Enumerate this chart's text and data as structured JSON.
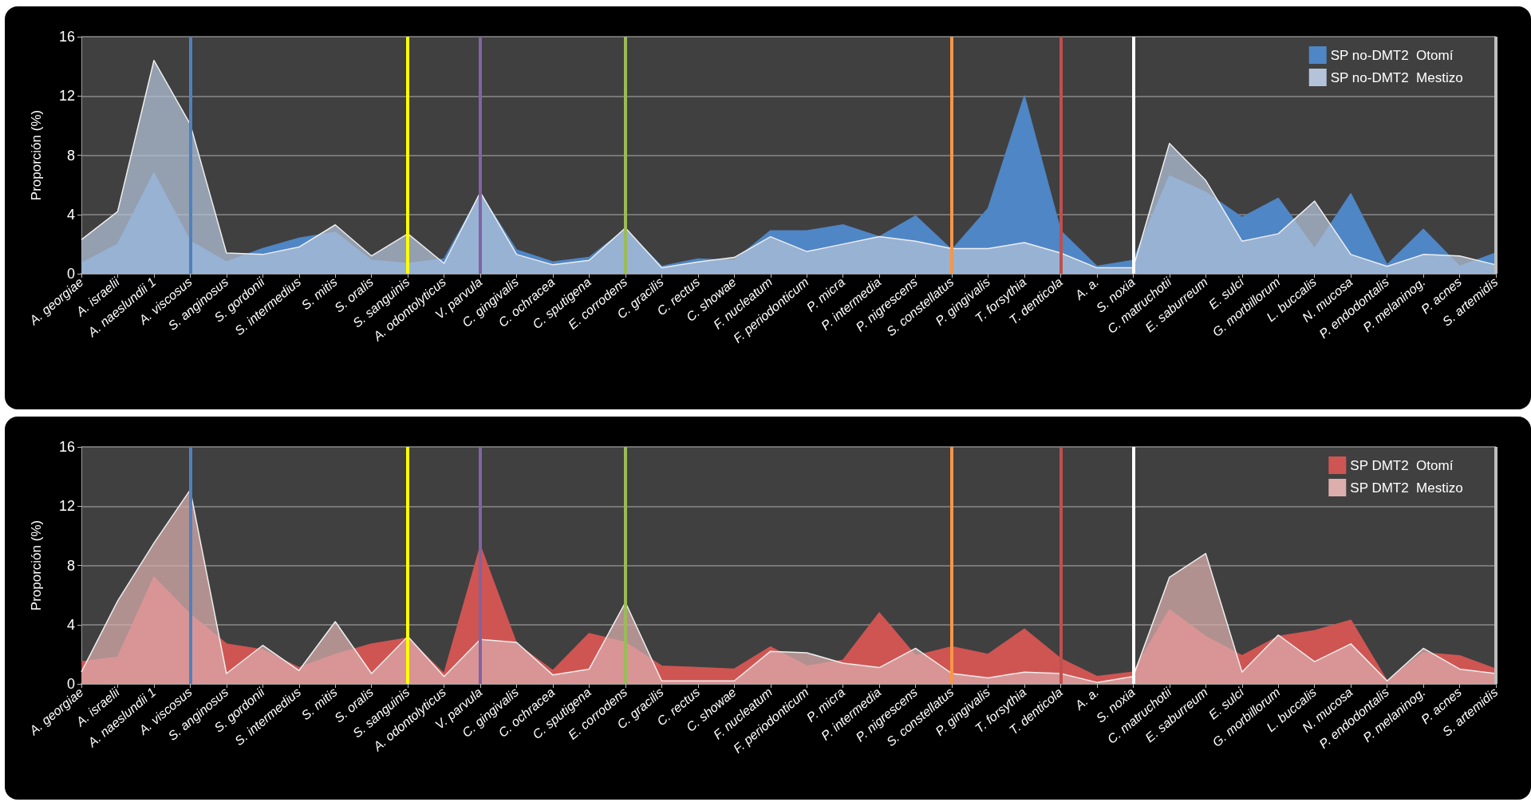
{
  "chart_data": [
    {
      "type": "area",
      "ylabel": "Proporción (%)",
      "categories": [
        "A. georgiae",
        "A. israelii",
        "A. naeslundii 1",
        "A. viscosus",
        "S. anginosus",
        "S. gordonii",
        "S. intermedius",
        "S. mitis",
        "S. oralis",
        "S. sanguinis",
        "A. odontolyticus",
        "V. parvula",
        "C. gingivalis",
        "C. ochracea",
        "C. sputigena",
        "E. corrodens",
        "C. gracilis",
        "C. rectus",
        "C. showae",
        "F. nucleatum",
        "F. periodonticum",
        "P. micra",
        "P. intermedia",
        "P. nigrescens",
        "S. constellatus",
        "P. gingivalis",
        "T. forsythia",
        "T. denticola",
        "A. a.",
        "S. noxia",
        "C. matruchotii",
        "E. saburreum",
        "E. sulci",
        "G. morbillorum",
        "L. buccalis",
        "N. mucosa",
        "P. endodontalis",
        "P. melaninog.",
        "P. acnes",
        "S. artemidis"
      ],
      "series": [
        {
          "name": "SP no-DMT2  Otomí",
          "color": "#4f86c6",
          "values": [
            0.7,
            2.0,
            6.8,
            2.2,
            0.8,
            1.7,
            2.4,
            2.8,
            0.9,
            0.7,
            1.0,
            5.4,
            1.6,
            0.8,
            1.1,
            3.0,
            0.5,
            1.0,
            0.9,
            2.9,
            2.9,
            3.3,
            2.5,
            3.9,
            1.6,
            4.4,
            12.0,
            2.9,
            0.5,
            0.9,
            6.6,
            5.5,
            3.8,
            5.1,
            1.7,
            5.4,
            0.6,
            3.0,
            0.5,
            1.4
          ]
        },
        {
          "name": "SP no-DMT2  Mestizo",
          "color": "#b4c3da",
          "values": [
            2.3,
            4.2,
            14.4,
            10.1,
            1.4,
            1.3,
            1.8,
            3.3,
            1.2,
            2.7,
            0.7,
            5.5,
            1.3,
            0.6,
            0.9,
            3.1,
            0.4,
            0.8,
            1.1,
            2.5,
            1.5,
            2.0,
            2.5,
            2.2,
            1.7,
            1.7,
            2.1,
            1.4,
            0.4,
            0.4,
            8.8,
            6.3,
            2.2,
            2.7,
            4.9,
            1.3,
            0.5,
            1.3,
            1.2,
            0.6
          ]
        }
      ],
      "ylim": [
        0,
        16
      ],
      "yticks": [
        0,
        4,
        8,
        12,
        16
      ],
      "grid": "y",
      "legend": "top right",
      "marker": "none",
      "ref_lines": [
        {
          "axis": "x",
          "value": "A. viscosus",
          "color": "#4f81bd"
        },
        {
          "axis": "x",
          "value": "S. sanguinis",
          "color": "#ffff00"
        },
        {
          "axis": "x",
          "value": "V. parvula",
          "color": "#8064a2"
        },
        {
          "axis": "x",
          "value": "E. corrodens",
          "color": "#9bbb59"
        },
        {
          "axis": "x",
          "value": "S. constellatus",
          "color": "#f79646"
        },
        {
          "axis": "x",
          "value": "T. denticola",
          "color": "#c0504d"
        },
        {
          "axis": "x",
          "value": "S. noxia",
          "color": "#ffffff"
        },
        {
          "axis": "x",
          "value": "S. artemidis",
          "color": "#bfbfbf"
        }
      ]
    },
    {
      "type": "area",
      "ylabel": "Proporción (%)",
      "categories": [
        "A. georgiae",
        "A. israelii",
        "A. naeslundii 1",
        "A. viscosus",
        "S. anginosus",
        "S. gordonii",
        "S. intermedius",
        "S. mitis",
        "S. oralis",
        "S. sanguinis",
        "A. odontolyticus",
        "V. parvula",
        "C. gingivalis",
        "C. ochracea",
        "C. sputigena",
        "E. corrodens",
        "C. gracilis",
        "C. rectus",
        "C. showae",
        "F. nucleatum",
        "F. periodonticum",
        "P. micra",
        "P. intermedia",
        "P. nigrescens",
        "S. constellatus",
        "P. gingivalis",
        "T. forsythia",
        "T. denticola",
        "A. a.",
        "S. noxia",
        "C. matruchotii",
        "E. saburreum",
        "E. sulci",
        "G. morbillorum",
        "L. buccalis",
        "N. mucosa",
        "P. endodontalis",
        "P. melaninog.",
        "P. acnes",
        "S. artemidis"
      ],
      "series": [
        {
          "name": "SP DMT2  Otomí",
          "color": "#cf5553",
          "values": [
            1.5,
            1.8,
            7.2,
            4.7,
            2.7,
            2.3,
            1.1,
            2.0,
            2.7,
            3.1,
            0.7,
            9.3,
            2.7,
            0.9,
            3.4,
            2.8,
            1.2,
            1.1,
            1.0,
            2.5,
            1.2,
            1.6,
            4.8,
            1.9,
            2.5,
            2.0,
            3.7,
            1.7,
            0.5,
            0.8,
            5.0,
            3.2,
            1.9,
            3.2,
            3.6,
            4.3,
            0.2,
            2.1,
            1.9,
            1.0
          ]
        },
        {
          "name": "SP DMT2  Mestizo",
          "color": "#dcaeae",
          "values": [
            0.8,
            5.6,
            9.5,
            13.1,
            0.7,
            2.6,
            0.9,
            4.2,
            0.7,
            3.2,
            0.5,
            3.0,
            2.8,
            0.6,
            1.0,
            5.5,
            0.2,
            0.2,
            0.2,
            2.2,
            2.1,
            1.4,
            1.1,
            2.4,
            0.7,
            0.4,
            0.8,
            0.7,
            0.1,
            0.5,
            7.2,
            8.8,
            0.8,
            3.3,
            1.5,
            2.7,
            0.2,
            2.4,
            1.0,
            0.7
          ]
        }
      ],
      "ylim": [
        0,
        16
      ],
      "yticks": [
        0,
        4,
        8,
        12,
        16
      ],
      "grid": "y",
      "legend": "top right",
      "marker": "none",
      "ref_lines": [
        {
          "axis": "x",
          "value": "A. viscosus",
          "color": "#4f81bd"
        },
        {
          "axis": "x",
          "value": "S. sanguinis",
          "color": "#ffff00"
        },
        {
          "axis": "x",
          "value": "V. parvula",
          "color": "#8064a2"
        },
        {
          "axis": "x",
          "value": "E. corrodens",
          "color": "#9bbb59"
        },
        {
          "axis": "x",
          "value": "S. constellatus",
          "color": "#f79646"
        },
        {
          "axis": "x",
          "value": "T. denticola",
          "color": "#c0504d"
        },
        {
          "axis": "x",
          "value": "S. noxia",
          "color": "#ffffff"
        },
        {
          "axis": "x",
          "value": "S. artemidis",
          "color": "#bfbfbf"
        }
      ]
    }
  ]
}
